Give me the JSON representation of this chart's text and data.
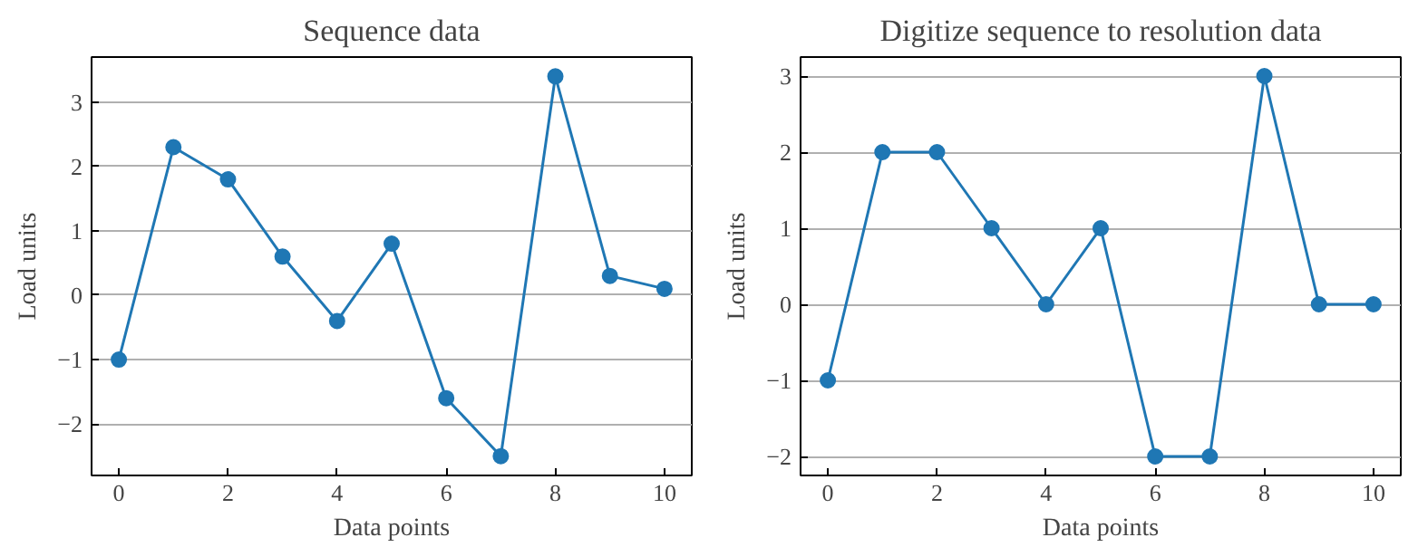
{
  "chart_data": [
    {
      "type": "line",
      "title": "Sequence data",
      "xlabel": "Data points",
      "ylabel": "Load units",
      "x": [
        0,
        1,
        2,
        3,
        4,
        5,
        6,
        7,
        8,
        9,
        10
      ],
      "series": [
        {
          "color": "#1f77b4",
          "values": [
            -1,
            2.3,
            1.8,
            0.6,
            -0.4,
            0.8,
            -1.6,
            -2.5,
            3.4,
            0.3,
            0.1
          ]
        }
      ],
      "xlim": [
        -0.5,
        10.5
      ],
      "ylim": [
        -2.8,
        3.7
      ],
      "xticks": [
        0,
        2,
        4,
        6,
        8,
        10
      ],
      "yticks": [
        -2,
        -1,
        0,
        1,
        2,
        3
      ],
      "grid": "y",
      "marker": "circle",
      "line_style": "solid"
    },
    {
      "type": "line",
      "title": "Digitize sequence to resolution data",
      "xlabel": "Data points",
      "ylabel": "Load units",
      "x": [
        0,
        1,
        2,
        3,
        4,
        5,
        6,
        7,
        8,
        9,
        10
      ],
      "series": [
        {
          "color": "#1f77b4",
          "values": [
            -1,
            2,
            2,
            1,
            0,
            1,
            -2,
            -2,
            3,
            0,
            0
          ]
        }
      ],
      "xlim": [
        -0.5,
        10.5
      ],
      "ylim": [
        -2.25,
        3.25
      ],
      "xticks": [
        0,
        2,
        4,
        6,
        8,
        10
      ],
      "yticks": [
        -2,
        -1,
        0,
        1,
        2,
        3
      ],
      "grid": "y",
      "marker": "circle",
      "line_style": "solid"
    }
  ]
}
